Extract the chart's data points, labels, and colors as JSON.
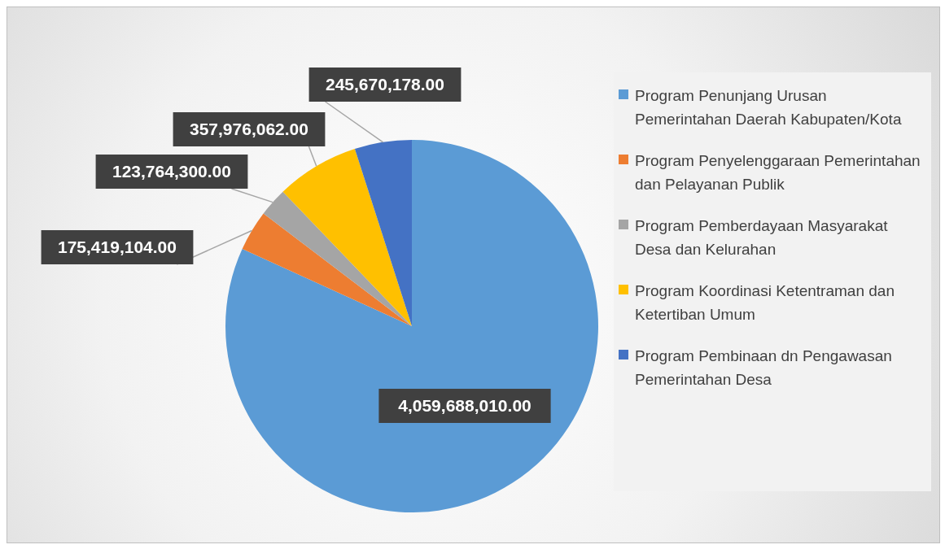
{
  "chart_data": {
    "type": "pie",
    "categories": [
      "Program Penunjang Urusan Pemerintahan Daerah Kabupaten/Kota",
      "Program Penyelenggaraan Pemerintahan dan Pelayanan Publik",
      "Program Pemberdayaan Masyarakat Desa dan Kelurahan",
      "Program Koordinasi Ketentraman dan Ketertiban Umum",
      "Program Pembinaan dn Pengawasan Pemerintahan Desa"
    ],
    "values": [
      4059688010,
      175419104,
      123764300,
      357976062,
      245670178
    ],
    "colors": [
      "#5b9bd5",
      "#ed7d31",
      "#a5a5a5",
      "#ffc000",
      "#4472c4"
    ],
    "value_labels": [
      "4,059,688,010.00",
      "175,419,104.00",
      "123,764,300.00",
      "357,976,062.00",
      "245,670,178.00"
    ],
    "legend": "right"
  }
}
